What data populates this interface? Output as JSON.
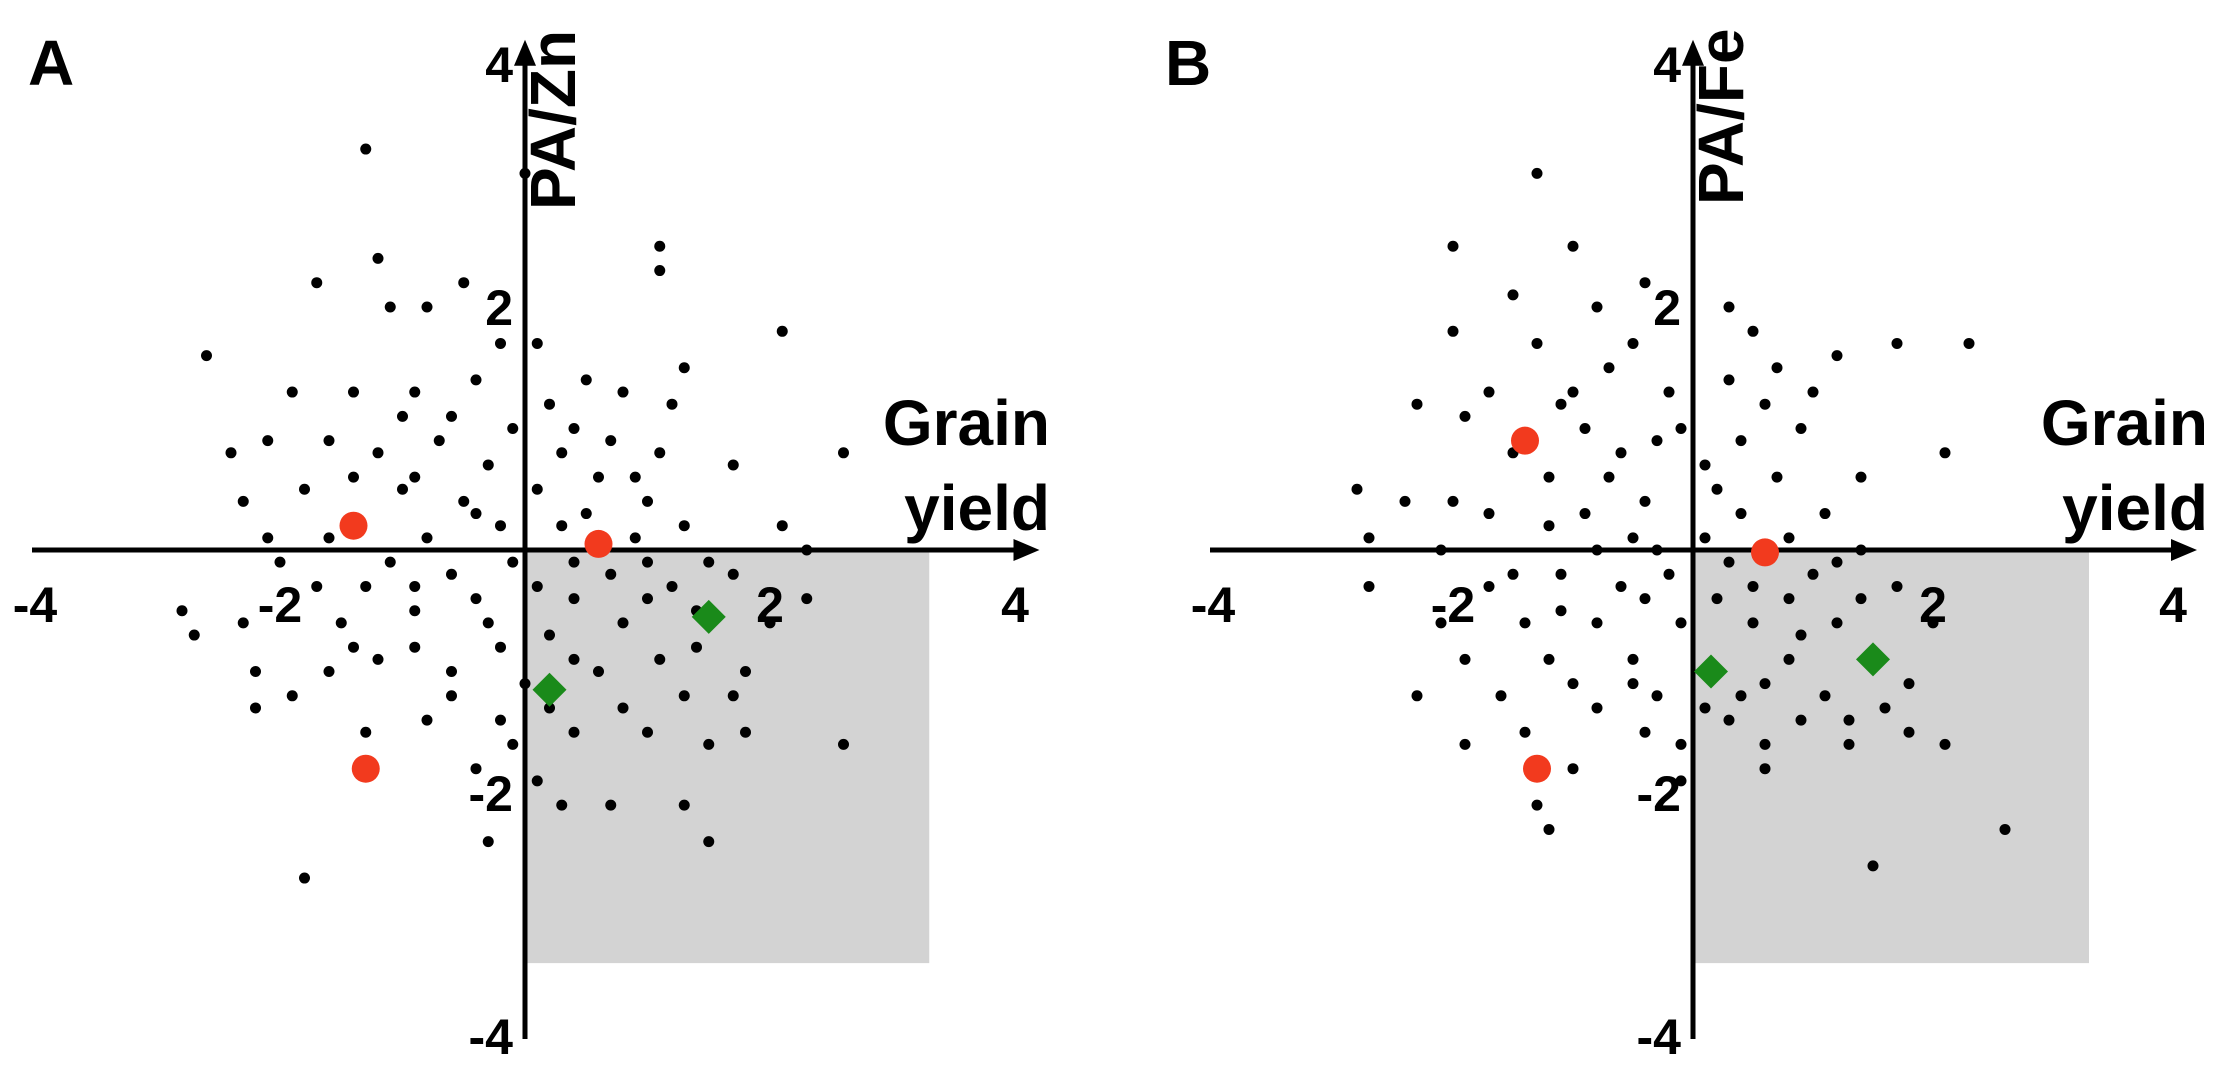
{
  "chart_data": [
    {
      "type": "scatter",
      "panel_label": "A",
      "xlabel": "Grain yield",
      "ylabel": "PA/Zn",
      "xlim": [
        -4,
        4.2
      ],
      "ylim": [
        -4,
        4.2
      ],
      "xticks": [
        -4,
        -2,
        2,
        4
      ],
      "yticks": [
        4,
        2,
        -2,
        -4
      ],
      "grid": false,
      "legend": "none",
      "shaded_region": {
        "x": [
          0,
          3.3
        ],
        "y": [
          -3.4,
          0
        ],
        "color": "#d3d3d3"
      },
      "points": [
        [
          -1.3,
          3.3
        ],
        [
          0,
          3.1
        ],
        [
          -1.2,
          2.4
        ],
        [
          -1.7,
          2.2
        ],
        [
          -1.1,
          2
        ],
        [
          -0.8,
          2
        ],
        [
          -0.5,
          2.2
        ],
        [
          1.1,
          2.3
        ],
        [
          1.1,
          2.5
        ],
        [
          2.1,
          1.8
        ],
        [
          -2.6,
          1.6
        ],
        [
          -0.2,
          1.7
        ],
        [
          0.1,
          1.7
        ],
        [
          0.5,
          1.4
        ],
        [
          1.3,
          1.5
        ],
        [
          -1.9,
          1.3
        ],
        [
          -1.4,
          1.3
        ],
        [
          -0.9,
          1.3
        ],
        [
          -0.4,
          1.4
        ],
        [
          0.2,
          1.2
        ],
        [
          0.8,
          1.3
        ],
        [
          1.2,
          1.2
        ],
        [
          -2.4,
          0.8
        ],
        [
          -2.1,
          0.9
        ],
        [
          -1.6,
          0.9
        ],
        [
          -1.2,
          0.8
        ],
        [
          -0.7,
          0.9
        ],
        [
          -0.3,
          0.7
        ],
        [
          0.3,
          0.8
        ],
        [
          0.7,
          0.9
        ],
        [
          1.1,
          0.8
        ],
        [
          1.7,
          0.7
        ],
        [
          -1.8,
          0.5
        ],
        [
          -1,
          0.5
        ],
        [
          -0.5,
          0.4
        ],
        [
          0.1,
          0.5
        ],
        [
          0.5,
          0.3
        ],
        [
          1,
          0.4
        ],
        [
          2.6,
          0.8
        ],
        [
          -2.1,
          0.1
        ],
        [
          -1.6,
          0.1
        ],
        [
          -0.8,
          0.1
        ],
        [
          -0.2,
          0.2
        ],
        [
          0.3,
          0.2
        ],
        [
          0.9,
          0.1
        ],
        [
          2.1,
          0.2
        ],
        [
          2.3,
          0
        ],
        [
          -2.8,
          -0.5
        ],
        [
          -1.3,
          -0.3
        ],
        [
          -0.6,
          -0.2
        ],
        [
          0.1,
          -0.3
        ],
        [
          0.7,
          -0.2
        ],
        [
          1.2,
          -0.3
        ],
        [
          1.7,
          -0.2
        ],
        [
          -2.7,
          -0.7
        ],
        [
          -2.3,
          -0.6
        ],
        [
          -1.5,
          -0.6
        ],
        [
          -0.9,
          -0.5
        ],
        [
          -0.3,
          -0.6
        ],
        [
          0.2,
          -0.7
        ],
        [
          0.8,
          -0.6
        ],
        [
          1.4,
          -0.5
        ],
        [
          2,
          -0.6
        ],
        [
          -2.2,
          -1
        ],
        [
          -1.2,
          -0.9
        ],
        [
          -0.6,
          -1
        ],
        [
          0,
          -1.1
        ],
        [
          0.6,
          -1
        ],
        [
          1.1,
          -0.9
        ],
        [
          1.8,
          -1
        ],
        [
          -2.2,
          -1.3
        ],
        [
          -1.9,
          -1.2
        ],
        [
          -1.3,
          -1.5
        ],
        [
          -0.8,
          -1.4
        ],
        [
          -0.2,
          -1.4
        ],
        [
          0.4,
          -1.5
        ],
        [
          1,
          -1.5
        ],
        [
          1.5,
          -1.6
        ],
        [
          1.8,
          -1.5
        ],
        [
          2.6,
          -1.6
        ],
        [
          -0.4,
          -1.8
        ],
        [
          0.1,
          -1.9
        ],
        [
          0.3,
          -2.1
        ],
        [
          0.7,
          -2.1
        ],
        [
          1.3,
          -2.1
        ],
        [
          1.5,
          -2.4
        ],
        [
          -0.3,
          -2.4
        ],
        [
          -1.8,
          -2.7
        ],
        [
          -1,
          1.1
        ],
        [
          -0.6,
          1.1
        ],
        [
          -0.1,
          1
        ],
        [
          0.4,
          1
        ],
        [
          0.9,
          0.6
        ],
        [
          -1.4,
          0.6
        ],
        [
          -0.9,
          0.6
        ],
        [
          -0.4,
          0.3
        ],
        [
          0.6,
          0.6
        ],
        [
          1.3,
          0.2
        ],
        [
          -2,
          -0.1
        ],
        [
          -1.1,
          -0.1
        ],
        [
          -0.1,
          -0.1
        ],
        [
          0.4,
          -0.1
        ],
        [
          1,
          -0.1
        ],
        [
          1.5,
          -0.1
        ],
        [
          -1.7,
          -0.3
        ],
        [
          -0.9,
          -0.3
        ],
        [
          -0.4,
          -0.4
        ],
        [
          0.4,
          -0.4
        ],
        [
          1,
          -0.4
        ],
        [
          2.3,
          -0.4
        ],
        [
          -1.4,
          -0.8
        ],
        [
          -0.9,
          -0.8
        ],
        [
          -0.2,
          -0.8
        ],
        [
          0.4,
          -0.9
        ],
        [
          1.4,
          -0.8
        ],
        [
          -0.6,
          -1.2
        ],
        [
          0.2,
          -1.3
        ],
        [
          0.8,
          -1.3
        ],
        [
          1.3,
          -1.2
        ],
        [
          -0.1,
          -1.6
        ],
        [
          -1.6,
          -1
        ],
        [
          1.7,
          -1.2
        ],
        [
          -2.3,
          0.4
        ]
      ],
      "highlight_circles": [
        [
          -1.4,
          0.2
        ],
        [
          -1.3,
          -1.8
        ],
        [
          0.6,
          0.05
        ]
      ],
      "highlight_diamonds": [
        [
          0.2,
          -1.15
        ],
        [
          1.5,
          -0.55
        ]
      ],
      "colors": {
        "points": "#000000",
        "circles": "#f23a1e",
        "diamonds": "#1a8a1a",
        "shade": "#d3d3d3"
      }
    },
    {
      "type": "scatter",
      "panel_label": "B",
      "xlabel": "Grain yield",
      "ylabel": "PA/Fe",
      "xlim": [
        -4,
        4.2
      ],
      "ylim": [
        -4,
        4.2
      ],
      "xticks": [
        -4,
        -2,
        2,
        4
      ],
      "yticks": [
        4,
        2,
        -2,
        -4
      ],
      "grid": false,
      "legend": "none",
      "shaded_region": {
        "x": [
          0,
          3.3
        ],
        "y": [
          -3.4,
          0
        ],
        "color": "#d3d3d3"
      },
      "points": [
        [
          -1.3,
          3.1
        ],
        [
          -2,
          2.5
        ],
        [
          -1,
          2.5
        ],
        [
          -1.5,
          2.1
        ],
        [
          -0.8,
          2
        ],
        [
          -0.4,
          2.2
        ],
        [
          0.3,
          2
        ],
        [
          -2,
          1.8
        ],
        [
          -1.3,
          1.7
        ],
        [
          -0.5,
          1.7
        ],
        [
          0.5,
          1.8
        ],
        [
          1.2,
          1.6
        ],
        [
          1.7,
          1.7
        ],
        [
          2.3,
          1.7
        ],
        [
          -2.3,
          1.2
        ],
        [
          -1.7,
          1.3
        ],
        [
          -1,
          1.3
        ],
        [
          -0.2,
          1.3
        ],
        [
          0.3,
          1.4
        ],
        [
          0.6,
          1.2
        ],
        [
          1,
          1.3
        ],
        [
          -1.9,
          1.1
        ],
        [
          -0.9,
          1
        ],
        [
          -0.1,
          1
        ],
        [
          0.9,
          1
        ],
        [
          2.1,
          0.8
        ],
        [
          -2.8,
          0.5
        ],
        [
          -2.4,
          0.4
        ],
        [
          -2,
          0.4
        ],
        [
          -1.2,
          0.6
        ],
        [
          -0.7,
          0.6
        ],
        [
          0.1,
          0.7
        ],
        [
          0.7,
          0.6
        ],
        [
          1.4,
          0.6
        ],
        [
          -1.7,
          0.3
        ],
        [
          -0.9,
          0.3
        ],
        [
          -0.4,
          0.4
        ],
        [
          0.4,
          0.3
        ],
        [
          1.1,
          0.3
        ],
        [
          -2.7,
          0.1
        ],
        [
          -1.2,
          0.2
        ],
        [
          -0.5,
          0.1
        ],
        [
          0.1,
          0.1
        ],
        [
          0.8,
          0.1
        ],
        [
          1.4,
          0
        ],
        [
          -2.7,
          -0.3
        ],
        [
          -1.7,
          -0.3
        ],
        [
          -1.1,
          -0.2
        ],
        [
          -0.2,
          -0.2
        ],
        [
          0.5,
          -0.3
        ],
        [
          1,
          -0.2
        ],
        [
          1.7,
          -0.3
        ],
        [
          -2.1,
          -0.6
        ],
        [
          -1.4,
          -0.6
        ],
        [
          -0.8,
          -0.6
        ],
        [
          -0.1,
          -0.6
        ],
        [
          0.5,
          -0.6
        ],
        [
          1.2,
          -0.6
        ],
        [
          -1.9,
          -0.9
        ],
        [
          -1.2,
          -0.9
        ],
        [
          -0.5,
          -0.9
        ],
        [
          0.2,
          -1
        ],
        [
          0.8,
          -0.9
        ],
        [
          1.5,
          -0.9
        ],
        [
          -2.3,
          -1.2
        ],
        [
          -1,
          -1.1
        ],
        [
          -0.3,
          -1.2
        ],
        [
          0.4,
          -1.2
        ],
        [
          1.1,
          -1.2
        ],
        [
          1.6,
          -1.3
        ],
        [
          -1.9,
          -1.6
        ],
        [
          -1.4,
          -1.5
        ],
        [
          -0.4,
          -1.5
        ],
        [
          0.3,
          -1.4
        ],
        [
          0.9,
          -1.4
        ],
        [
          1.8,
          -1.5
        ],
        [
          -1,
          -1.8
        ],
        [
          -0.1,
          -1.6
        ],
        [
          0.6,
          -1.6
        ],
        [
          1.3,
          -1.6
        ],
        [
          2.1,
          -1.6
        ],
        [
          -1.3,
          -2.1
        ],
        [
          -1.2,
          -2.3
        ],
        [
          -0.1,
          -1.9
        ],
        [
          0.6,
          -1.8
        ],
        [
          2.6,
          -2.3
        ],
        [
          1.5,
          -2.6
        ],
        [
          -0.7,
          1.5
        ],
        [
          -0.3,
          0.9
        ],
        [
          0.4,
          0.9
        ],
        [
          -1.5,
          0.8
        ],
        [
          -0.6,
          0.8
        ],
        [
          0.2,
          0.5
        ],
        [
          -2.1,
          0
        ],
        [
          -0.8,
          0
        ],
        [
          -0.3,
          0
        ],
        [
          0.3,
          -0.1
        ],
        [
          1.2,
          -0.1
        ],
        [
          -1.5,
          -0.2
        ],
        [
          -0.6,
          -0.3
        ],
        [
          0.2,
          -0.4
        ],
        [
          0.8,
          -0.4
        ],
        [
          1.4,
          -0.4
        ],
        [
          -1.1,
          -0.5
        ],
        [
          -0.4,
          -0.4
        ],
        [
          0.6,
          -1.1
        ],
        [
          -0.8,
          -1.3
        ],
        [
          0.1,
          -1.3
        ],
        [
          1.3,
          -1.4
        ],
        [
          -0.5,
          -1.1
        ],
        [
          0.9,
          -0.7
        ],
        [
          1.8,
          -1.1
        ],
        [
          -1.1,
          1.2
        ],
        [
          -1.6,
          -1.2
        ],
        [
          0.7,
          1.5
        ],
        [
          2,
          -0.6
        ]
      ],
      "highlight_circles": [
        [
          -1.4,
          0.9
        ],
        [
          -1.3,
          -1.8
        ],
        [
          0.6,
          -0.02
        ]
      ],
      "highlight_diamonds": [
        [
          0.15,
          -1.0
        ],
        [
          1.5,
          -0.9
        ]
      ],
      "colors": {
        "points": "#000000",
        "circles": "#f23a1e",
        "diamonds": "#1a8a1a",
        "shade": "#d3d3d3"
      }
    }
  ]
}
